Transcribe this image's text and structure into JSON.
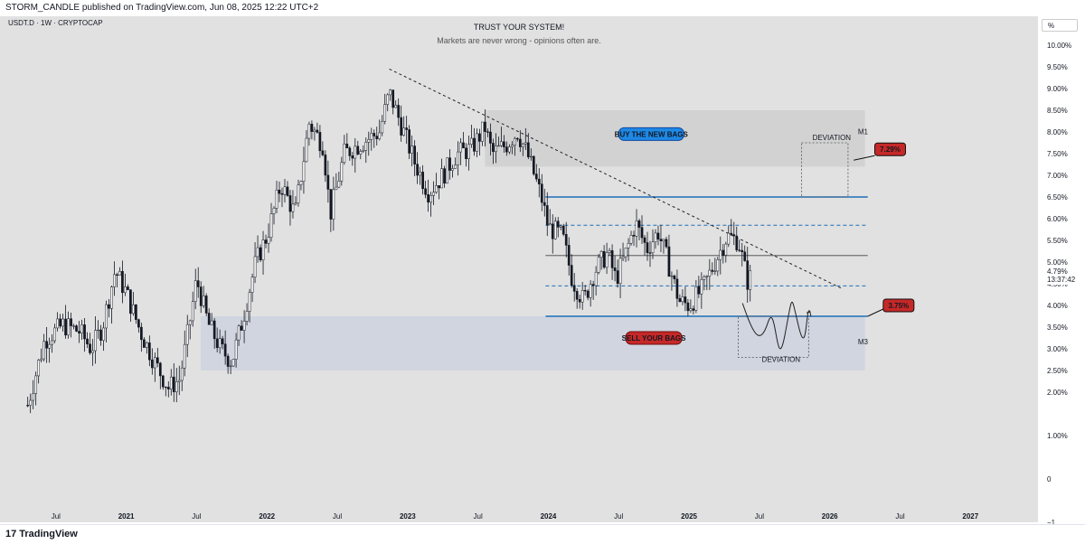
{
  "header": {
    "published_line": "STORM_CANDLE published on TradingView.com, Jun 08, 2025 12:22 UTC+2"
  },
  "chart_header": {
    "symbol": "USDT.D · 1W · CRYPTOCAP",
    "title": "TRUST YOUR SYSTEM!",
    "subtitle": "Markets are never wrong - opinions often are.",
    "scale_button": "%"
  },
  "price_axis": {
    "current_price": "4.79%",
    "countdown": "13:37:42"
  },
  "footer": {
    "brand": "TradingView",
    "brand_mark": "17"
  },
  "annotations": {
    "buy_label": "BUY THE NEW BAGS",
    "sell_label": "SELL YOUR BAGS",
    "target_high": "7.29%",
    "target_low": "3.75%",
    "deviation_top": "DEVIATION",
    "deviation_bottom": "DEVIATION",
    "tag_m1": "M1",
    "tag_m3": "M3"
  },
  "colors": {
    "background": "#e1e1e1",
    "candle": "#131722",
    "range_line": "#1e6fb8",
    "buy_zone": "#d2d2d2",
    "sell_zone": "#d0d5e0",
    "label_blue": "#1e88e5",
    "label_red": "#c62828"
  },
  "chart_data": {
    "type": "candlestick",
    "timeframe": "1W",
    "x_tick_labels": [
      "Jul",
      "2021",
      "Jul",
      "2022",
      "Jul",
      "2023",
      "Jul",
      "2024",
      "Jul",
      "2025",
      "Jul",
      "2026",
      "Jul",
      "2027"
    ],
    "y_tick_labels": [
      "10.00%",
      "9.50%",
      "9.00%",
      "8.50%",
      "8.00%",
      "7.50%",
      "7.00%",
      "6.50%",
      "6.00%",
      "5.50%",
      "5.00%",
      "4.50%",
      "4.00%",
      "3.50%",
      "3.00%",
      "2.50%",
      "2.00%",
      "1.00%",
      "0",
      "−1"
    ],
    "ylim": [
      -1,
      10
    ],
    "close_path": [
      [
        2020.3,
        1.7
      ],
      [
        2020.42,
        3.2
      ],
      [
        2020.55,
        3.55
      ],
      [
        2020.67,
        3.4
      ],
      [
        2020.75,
        3.0
      ],
      [
        2020.83,
        3.5
      ],
      [
        2020.92,
        4.8
      ],
      [
        2021.0,
        4.3
      ],
      [
        2021.1,
        3.4
      ],
      [
        2021.2,
        2.7
      ],
      [
        2021.3,
        2.1
      ],
      [
        2021.38,
        2.3
      ],
      [
        2021.45,
        3.6
      ],
      [
        2021.5,
        4.6
      ],
      [
        2021.58,
        3.6
      ],
      [
        2021.67,
        3.0
      ],
      [
        2021.75,
        2.7
      ],
      [
        2021.83,
        3.7
      ],
      [
        2021.92,
        5.0
      ],
      [
        2022.0,
        5.6
      ],
      [
        2022.1,
        6.8
      ],
      [
        2022.2,
        6.1
      ],
      [
        2022.3,
        8.2
      ],
      [
        2022.4,
        7.7
      ],
      [
        2022.45,
        6.1
      ],
      [
        2022.55,
        7.5
      ],
      [
        2022.7,
        7.8
      ],
      [
        2022.8,
        8.0
      ],
      [
        2022.87,
        8.9
      ],
      [
        2022.95,
        8.2
      ],
      [
        2023.05,
        7.3
      ],
      [
        2023.15,
        6.6
      ],
      [
        2023.25,
        7.0
      ],
      [
        2023.35,
        7.5
      ],
      [
        2023.45,
        7.6
      ],
      [
        2023.55,
        8.1
      ],
      [
        2023.6,
        7.5
      ],
      [
        2023.7,
        7.7
      ],
      [
        2023.78,
        8.0
      ],
      [
        2023.85,
        7.5
      ],
      [
        2023.95,
        6.5
      ],
      [
        2024.0,
        5.8
      ],
      [
        2024.1,
        5.6
      ],
      [
        2024.17,
        4.6
      ],
      [
        2024.25,
        4.1
      ],
      [
        2024.33,
        4.8
      ],
      [
        2024.42,
        5.2
      ],
      [
        2024.48,
        4.6
      ],
      [
        2024.55,
        5.2
      ],
      [
        2024.62,
        5.9
      ],
      [
        2024.7,
        5.3
      ],
      [
        2024.78,
        5.7
      ],
      [
        2024.85,
        5.0
      ],
      [
        2024.93,
        4.1
      ],
      [
        2025.0,
        4.0
      ],
      [
        2025.1,
        4.4
      ],
      [
        2025.2,
        5.1
      ],
      [
        2025.27,
        5.6
      ],
      [
        2025.35,
        5.5
      ],
      [
        2025.42,
        4.5
      ],
      [
        2025.45,
        4.79
      ]
    ],
    "overlays": {
      "downtrend_line": [
        [
          2022.87,
          9.45
        ],
        [
          2026.08,
          4.4
        ]
      ],
      "range_high": 6.5,
      "range_mid_upper": 5.85,
      "range_mid": 5.15,
      "range_mid_lower": 4.45,
      "range_low": 3.75,
      "buy_zone": {
        "x": [
          2023.55,
          2026.25
        ],
        "y": [
          7.2,
          8.5
        ]
      },
      "sell_zone": {
        "x": [
          2021.53,
          2026.25
        ],
        "y": [
          2.5,
          3.75
        ]
      },
      "deviation_box_top": {
        "x": [
          2025.8,
          2026.13
        ],
        "y": [
          6.5,
          7.75
        ]
      },
      "deviation_box_bottom": {
        "x": [
          2025.35,
          2025.85
        ],
        "y": [
          2.8,
          3.75
        ]
      }
    }
  }
}
